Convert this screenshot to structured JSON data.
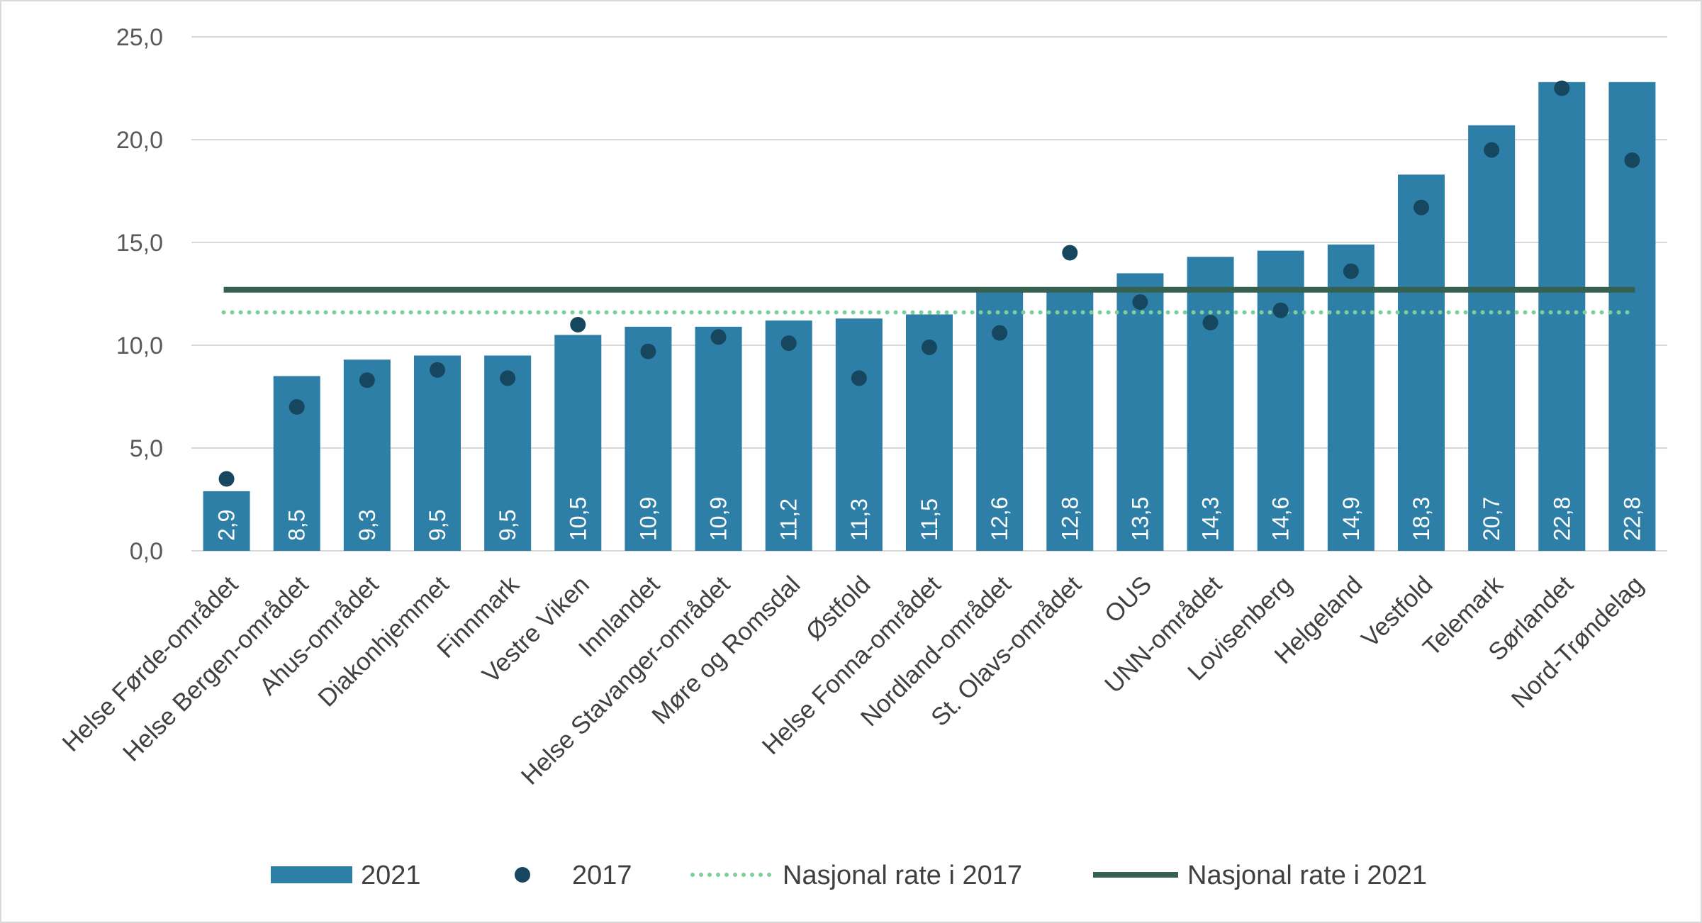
{
  "chart_data": {
    "type": "bar",
    "title": "",
    "xlabel": "",
    "ylabel": "",
    "ylim": [
      0,
      25
    ],
    "yticks": [
      "0,0",
      "5,0",
      "10,0",
      "15,0",
      "20,0",
      "25,0"
    ],
    "ytick_values": [
      0,
      5,
      10,
      15,
      20,
      25
    ],
    "grid": true,
    "categories": [
      "Helse Førde-området",
      "Helse Bergen-området",
      "Ahus-området",
      "Diakonhjemmet",
      "Finnmark",
      "Vestre Viken",
      "Innlandet",
      "Helse Stavanger-området",
      "Møre og Romsdal",
      "Østfold",
      "Helse Fonna-området",
      "Nordland-området",
      "St. Olavs-området",
      "OUS",
      "UNN-området",
      "Lovisenberg",
      "Helgeland",
      "Vestfold",
      "Telemark",
      "Sørlandet",
      "Nord-Trøndelag"
    ],
    "series": [
      {
        "name": "2021",
        "kind": "bar",
        "color": "#2e7fa8",
        "values": [
          2.9,
          8.5,
          9.3,
          9.5,
          9.5,
          10.5,
          10.9,
          10.9,
          11.2,
          11.3,
          11.5,
          12.6,
          12.8,
          13.5,
          14.3,
          14.6,
          14.9,
          18.3,
          20.7,
          22.8,
          22.8
        ],
        "labels": [
          "2,9",
          "8,5",
          "9,3",
          "9,5",
          "9,5",
          "10,5",
          "10,9",
          "10,9",
          "11,2",
          "11,3",
          "11,5",
          "12,6",
          "12,8",
          "13,5",
          "14,3",
          "14,6",
          "14,9",
          "18,3",
          "20,7",
          "22,8",
          "22,8"
        ]
      },
      {
        "name": "2017",
        "kind": "scatter",
        "color": "#17475f",
        "values": [
          3.5,
          7.0,
          8.3,
          8.8,
          8.4,
          11.0,
          9.7,
          10.4,
          10.1,
          8.4,
          9.9,
          10.6,
          14.5,
          12.1,
          11.1,
          11.7,
          13.6,
          16.7,
          19.5,
          22.5,
          19.0
        ]
      },
      {
        "name": "Nasjonal rate i 2017",
        "kind": "dotted-line",
        "color": "#7dcf9a",
        "value": 11.6
      },
      {
        "name": "Nasjonal rate i 2021",
        "kind": "line",
        "color": "#36604f",
        "value": 12.7
      }
    ],
    "legend_position": "bottom"
  }
}
